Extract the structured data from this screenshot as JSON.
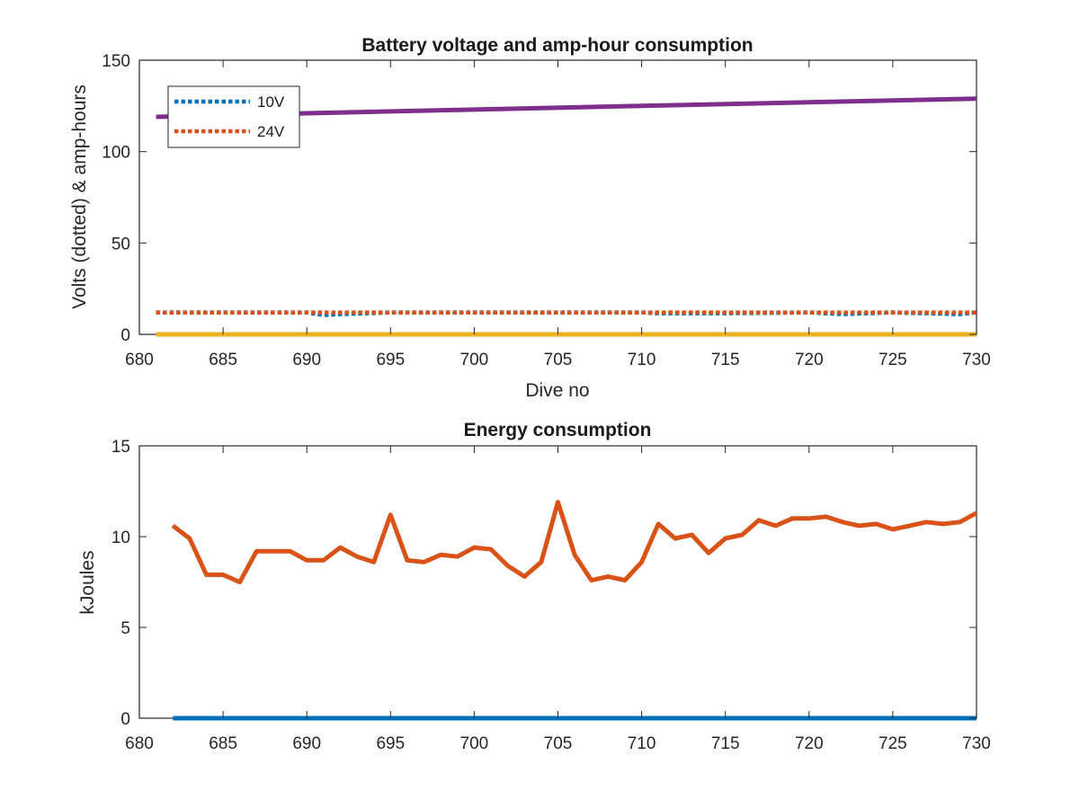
{
  "chart_data": [
    {
      "type": "line",
      "title": "Battery voltage and amp-hour consumption",
      "xlabel": "Dive no",
      "ylabel": "Volts (dotted) & amp-hours",
      "xlim": [
        680,
        730
      ],
      "ylim": [
        0,
        150
      ],
      "xticks": [
        680,
        685,
        690,
        695,
        700,
        705,
        710,
        715,
        720,
        725,
        730
      ],
      "yticks": [
        0,
        50,
        100,
        150
      ],
      "grid": false,
      "legend_position": "top-left",
      "series": [
        {
          "name": "10V",
          "style": "dotted",
          "color": "#0072BD",
          "x": [
            681,
            685,
            690,
            691,
            692,
            695,
            700,
            705,
            710,
            711,
            715,
            720,
            722,
            725,
            729,
            730
          ],
          "y": [
            12,
            12,
            12,
            10.5,
            11,
            12,
            12,
            12,
            12,
            11.5,
            11.5,
            12,
            11,
            12,
            11,
            12
          ]
        },
        {
          "name": "24V",
          "style": "dotted",
          "color": "#D95319",
          "x": [
            681,
            730
          ],
          "y": [
            12,
            12
          ]
        },
        {
          "name": "",
          "style": "solid",
          "color": "#7E2F8E",
          "x": [
            681,
            690,
            700,
            710,
            720,
            730
          ],
          "y": [
            119,
            121,
            123,
            125,
            127,
            129
          ]
        },
        {
          "name": "",
          "style": "solid",
          "color": "#EDB120",
          "x": [
            681,
            730
          ],
          "y": [
            0,
            0
          ]
        }
      ]
    },
    {
      "type": "line",
      "title": "Energy consumption",
      "xlabel": "",
      "ylabel": "kJoules",
      "xlim": [
        680,
        730
      ],
      "ylim": [
        0,
        15
      ],
      "xticks": [
        680,
        685,
        690,
        695,
        700,
        705,
        710,
        715,
        720,
        725,
        730
      ],
      "yticks": [
        0,
        5,
        10,
        15
      ],
      "grid": false,
      "series": [
        {
          "name": "",
          "style": "solid",
          "color": "#D95319",
          "x": [
            682,
            683,
            684,
            685,
            686,
            687,
            688,
            689,
            690,
            691,
            692,
            693,
            694,
            695,
            696,
            697,
            698,
            699,
            700,
            701,
            702,
            703,
            704,
            705,
            706,
            707,
            708,
            709,
            710,
            711,
            712,
            713,
            714,
            715,
            716,
            717,
            718,
            719,
            720,
            721,
            722,
            723,
            724,
            725,
            726,
            727,
            728,
            729,
            730
          ],
          "y": [
            10.6,
            9.9,
            7.9,
            7.9,
            7.5,
            9.2,
            9.2,
            9.2,
            8.7,
            8.7,
            9.4,
            8.9,
            8.6,
            11.2,
            8.7,
            8.6,
            9.0,
            8.9,
            9.4,
            9.3,
            8.4,
            7.8,
            8.6,
            11.9,
            9.0,
            7.6,
            7.8,
            7.6,
            8.6,
            10.7,
            9.9,
            10.1,
            9.1,
            9.9,
            10.1,
            10.9,
            10.6,
            11.0,
            11.0,
            11.1,
            10.8,
            10.6,
            10.7,
            10.4,
            10.6,
            10.8,
            10.7,
            10.8,
            11.3
          ]
        },
        {
          "name": "",
          "style": "solid",
          "color": "#0072BD",
          "x": [
            682,
            730
          ],
          "y": [
            0,
            0
          ]
        }
      ]
    }
  ]
}
